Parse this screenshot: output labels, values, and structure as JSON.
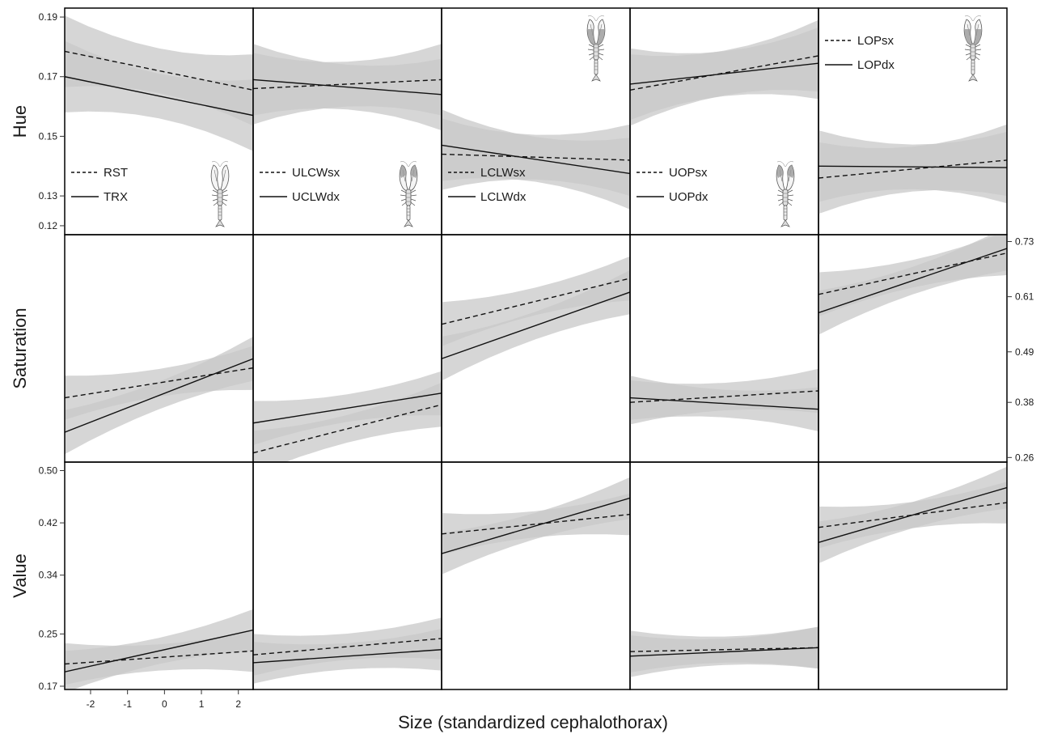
{
  "chart_data": {
    "type": "line",
    "title": "",
    "xlabel": "Size (standardized cephalothorax)",
    "xlim": [
      -2.7,
      2.4
    ],
    "x_ticks": [
      -2,
      -1,
      0,
      1,
      2
    ],
    "x_tick_labels": [
      "-2",
      "-1",
      "0",
      "1",
      "2"
    ],
    "rows": [
      {
        "label": "Hue",
        "ylim": [
          0.117,
          0.193
        ],
        "y_ticks": [
          0.12,
          0.13,
          0.15,
          0.17,
          0.19
        ],
        "y_tick_labels": [
          "0.12",
          "0.13",
          "0.15",
          "0.17",
          "0.19"
        ],
        "axis_side": "left"
      },
      {
        "label": "Saturation",
        "ylim": [
          0.25,
          0.745
        ],
        "y_ticks": [
          0.26,
          0.38,
          0.49,
          0.61,
          0.73
        ],
        "y_tick_labels": [
          "0.26",
          "0.38",
          "0.49",
          "0.61",
          "0.73"
        ],
        "axis_side": "right"
      },
      {
        "label": "Value",
        "ylim": [
          0.165,
          0.513
        ],
        "y_ticks": [
          0.17,
          0.25,
          0.34,
          0.42,
          0.5
        ],
        "y_tick_labels": [
          "0.17",
          "0.25",
          "0.34",
          "0.42",
          "0.50"
        ],
        "axis_side": "left"
      }
    ],
    "line_styles": {
      "dashed": "sx / RST",
      "solid": "dx / TRX"
    },
    "ribbon_color": "#c8c8c8",
    "columns": [
      {
        "legend": {
          "dashed": "RST",
          "solid": "TRX"
        },
        "legend_position": "bottom-left",
        "icon_position": "bottom-right",
        "icon_highlight": "none",
        "series": {
          "Hue": {
            "dashed": [
              0.1785,
              0.1655
            ],
            "solid": [
              0.17,
              0.157
            ]
          },
          "Saturation": {
            "dashed": [
              0.39,
              0.455
            ],
            "solid": [
              0.315,
              0.475
            ]
          },
          "Value": {
            "dashed": [
              0.204,
              0.224
            ],
            "solid": [
              0.192,
              0.256
            ]
          }
        }
      },
      {
        "legend": {
          "dashed": "ULCWsx",
          "solid": "UCLWdx"
        },
        "legend_position": "bottom-left",
        "icon_position": "bottom-right",
        "icon_highlight": "upper-claw",
        "series": {
          "Hue": {
            "dashed": [
              0.166,
              0.169
            ],
            "solid": [
              0.169,
              0.164
            ]
          },
          "Saturation": {
            "dashed": [
              0.27,
              0.375
            ],
            "solid": [
              0.335,
              0.4
            ]
          },
          "Value": {
            "dashed": [
              0.218,
              0.243
            ],
            "solid": [
              0.206,
              0.226
            ]
          }
        }
      },
      {
        "legend": {
          "dashed": "LCLWsx",
          "solid": "LCLWdx"
        },
        "legend_position": "bottom-left",
        "icon_position": "top-right",
        "icon_highlight": "lower-claw",
        "series": {
          "Hue": {
            "dashed": [
              0.144,
              0.142
            ],
            "solid": [
              0.147,
              0.1375
            ]
          },
          "Saturation": {
            "dashed": [
              0.55,
              0.65
            ],
            "solid": [
              0.475,
              0.62
            ]
          },
          "Value": {
            "dashed": [
              0.403,
              0.433
            ],
            "solid": [
              0.373,
              0.458
            ]
          }
        }
      },
      {
        "legend": {
          "dashed": "UOPsx",
          "solid": "UOPdx"
        },
        "legend_position": "bottom-left",
        "icon_position": "bottom-right",
        "icon_highlight": "upper-claw",
        "series": {
          "Hue": {
            "dashed": [
              0.1655,
              0.177
            ],
            "solid": [
              0.1675,
              0.1745
            ]
          },
          "Saturation": {
            "dashed": [
              0.38,
              0.405
            ],
            "solid": [
              0.39,
              0.365
            ]
          },
          "Value": {
            "dashed": [
              0.223,
              0.229
            ],
            "solid": [
              0.216,
              0.229
            ]
          }
        }
      },
      {
        "legend": {
          "dashed": "LOPsx",
          "solid": "LOPdx"
        },
        "legend_position": "top-left",
        "icon_position": "top-right",
        "icon_highlight": "lower-claw",
        "series": {
          "Hue": {
            "dashed": [
              0.136,
              0.142
            ],
            "solid": [
              0.14,
              0.1395
            ]
          },
          "Saturation": {
            "dashed": [
              0.615,
              0.705
            ],
            "solid": [
              0.575,
              0.715
            ]
          },
          "Value": {
            "dashed": [
              0.413,
              0.451
            ],
            "solid": [
              0.39,
              0.474
            ]
          }
        }
      }
    ]
  }
}
